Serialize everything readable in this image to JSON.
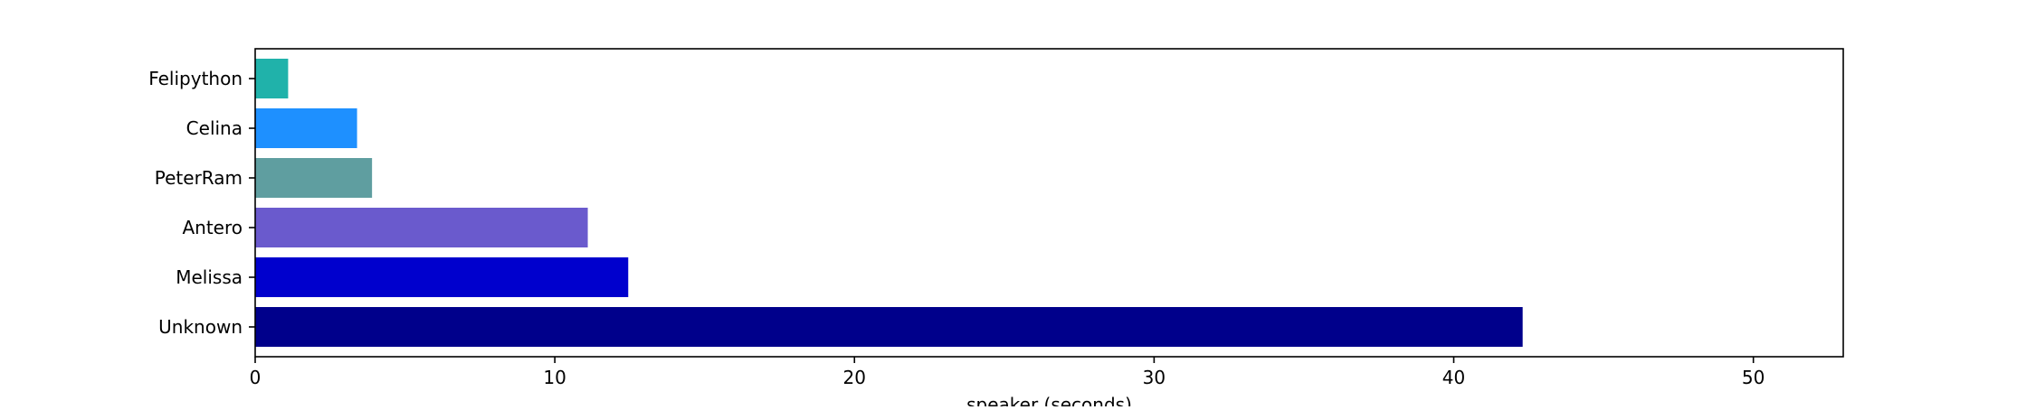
{
  "chart_data": {
    "type": "bar",
    "orientation": "horizontal",
    "categories": [
      "Unknown",
      "Melissa",
      "Antero",
      "PeterRam",
      "Celina",
      "Felipython"
    ],
    "values": [
      42.3,
      12.45,
      11.1,
      3.9,
      3.4,
      1.1
    ],
    "colors": [
      "#00008b",
      "#0000cd",
      "#6a5acd",
      "#5f9ea0",
      "#1e90ff",
      "#20b2aa"
    ],
    "xlabel": "speaker (seconds)",
    "ylabel": "",
    "title": "",
    "xlim": [
      0,
      53
    ],
    "xticks": [
      0,
      10,
      20,
      30,
      40,
      50
    ],
    "grid": false,
    "legend": "none"
  }
}
